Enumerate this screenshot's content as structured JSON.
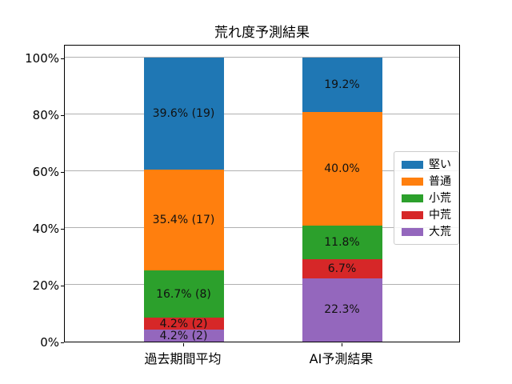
{
  "chart_data": {
    "type": "bar",
    "stacked": true,
    "title": "荒れ度予測結果",
    "categories": [
      "過去期間平均",
      "AI予測結果"
    ],
    "series": [
      {
        "name": "堅い",
        "color": "#1f77b4",
        "values": [
          39.6,
          19.2
        ],
        "value_labels": [
          "39.6% (19)",
          "19.2%"
        ]
      },
      {
        "name": "普通",
        "color": "#ff7f0e",
        "values": [
          35.4,
          40.0
        ],
        "value_labels": [
          "35.4% (17)",
          "40.0%"
        ]
      },
      {
        "name": "小荒",
        "color": "#2ca02c",
        "values": [
          16.7,
          11.8
        ],
        "value_labels": [
          "16.7% (8)",
          "11.8%"
        ]
      },
      {
        "name": "中荒",
        "color": "#d62728",
        "values": [
          4.2,
          6.7
        ],
        "value_labels": [
          "4.2% (2)",
          "6.7%"
        ]
      },
      {
        "name": "大荒",
        "color": "#9467bd",
        "values": [
          4.2,
          22.3
        ],
        "value_labels": [
          "4.2% (2)",
          "22.3%"
        ]
      }
    ],
    "stack_order_bottom_to_top": [
      "大荒",
      "中荒",
      "小荒",
      "普通",
      "堅い"
    ],
    "y_ticks": [
      {
        "value": 0,
        "label": "0%"
      },
      {
        "value": 20,
        "label": "20%"
      },
      {
        "value": 40,
        "label": "40%"
      },
      {
        "value": 60,
        "label": "60%"
      },
      {
        "value": 80,
        "label": "80%"
      },
      {
        "value": 100,
        "label": "100%"
      }
    ],
    "ylim": [
      0,
      100
    ],
    "grid": "horizontal",
    "grid_color": "#b0b0b0",
    "legend_position": "center-right"
  }
}
